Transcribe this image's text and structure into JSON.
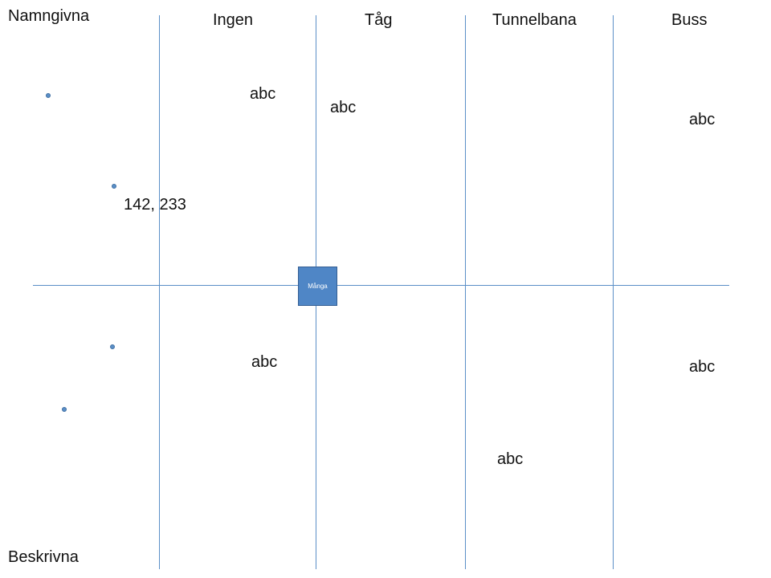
{
  "axis_labels": {
    "top": "Namngivna",
    "bottom": "Beskrivna"
  },
  "columns": [
    "Ingen",
    "Tåg",
    "Tunnelbana",
    "Buss"
  ],
  "point_label": "142, 233",
  "center_box_label": "Många",
  "cell_labels": [
    "abc",
    "abc",
    "abc",
    "abc",
    "abc",
    "abc"
  ],
  "colors": {
    "line": "#5b8fc7",
    "box_fill": "#4f86c6",
    "text": "#111111"
  }
}
